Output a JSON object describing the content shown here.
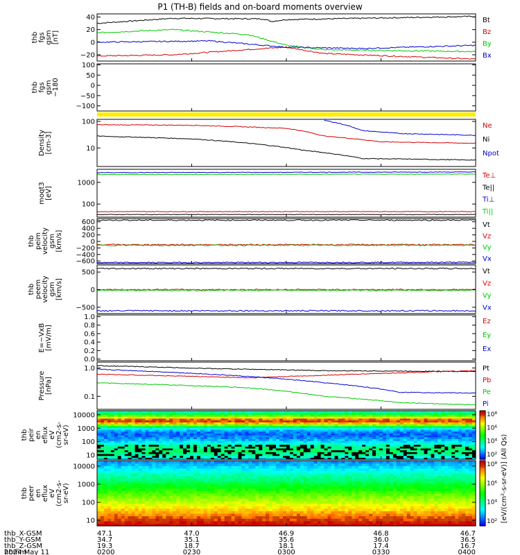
{
  "title": "P1  (TH-B) fields and on-board moments overview",
  "colors": {
    "black": "#000000",
    "red": "#d40000",
    "green": "#00c800",
    "blue": "#0000d0",
    "yellow": "#ffee00"
  },
  "chart_data": [
    {
      "type": "line",
      "id": "fgs",
      "ylabel_lines": [
        "thb",
        "fgs",
        "gsm",
        "[nT]"
      ],
      "yticks": [
        "40",
        "20",
        "0",
        "−20"
      ],
      "ytick_vals": [
        40,
        20,
        0,
        -20
      ],
      "ylim": [
        -30,
        45
      ],
      "series": [
        {
          "name": "Bt",
          "color": "black",
          "shape": [
            [
              0,
              30
            ],
            [
              0.2,
              38
            ],
            [
              0.44,
              37
            ],
            [
              0.46,
              33
            ],
            [
              0.5,
              36
            ],
            [
              1,
              41
            ]
          ]
        },
        {
          "name": "Bz",
          "color": "red",
          "shape": [
            [
              0,
              -22
            ],
            [
              0.2,
              -20
            ],
            [
              0.44,
              -10
            ],
            [
              0.5,
              -8
            ],
            [
              0.6,
              -18
            ],
            [
              1,
              -27
            ]
          ]
        },
        {
          "name": "By",
          "color": "green",
          "shape": [
            [
              0,
              15
            ],
            [
              0.2,
              20
            ],
            [
              0.4,
              12
            ],
            [
              0.5,
              -5
            ],
            [
              0.6,
              -12
            ],
            [
              1,
              -15
            ]
          ]
        },
        {
          "name": "Bx",
          "color": "blue",
          "shape": [
            [
              0,
              0
            ],
            [
              0.3,
              2
            ],
            [
              0.5,
              -8
            ],
            [
              0.7,
              -10
            ],
            [
              1,
              -5
            ]
          ]
        }
      ]
    },
    {
      "type": "line",
      "id": "fgs-dsl",
      "ylabel_lines": [
        "thb",
        "fgs",
        "gsm",
        "−180"
      ],
      "yticks": [
        "100",
        "50",
        "0",
        "−50",
        "−100"
      ],
      "ytick_vals": [
        100,
        50,
        0,
        -50,
        -100
      ],
      "ylim": [
        -125,
        105
      ],
      "series": []
    },
    {
      "type": "line",
      "id": "density",
      "ylabel_lines": [
        "Density",
        "[cm-3]"
      ],
      "yticks": [
        "100",
        "10"
      ],
      "ytick_vals": [
        100,
        10
      ],
      "ylim": [
        2,
        120
      ],
      "log": true,
      "series": [
        {
          "name": "Ne",
          "color": "red",
          "shape": [
            [
              0,
              75
            ],
            [
              0.25,
              72
            ],
            [
              0.5,
              55
            ],
            [
              0.6,
              28
            ],
            [
              0.75,
              17
            ],
            [
              1,
              15
            ]
          ]
        },
        {
          "name": "Ni",
          "color": "black",
          "shape": [
            [
              0,
              28
            ],
            [
              0.25,
              22
            ],
            [
              0.4,
              15
            ],
            [
              0.55,
              8
            ],
            [
              0.7,
              4
            ],
            [
              1,
              3.5
            ]
          ]
        },
        {
          "name": "Npot",
          "color": "blue",
          "shape": [
            [
              0.6,
              110
            ],
            [
              0.7,
              45
            ],
            [
              0.8,
              35
            ],
            [
              1,
              30
            ]
          ]
        }
      ]
    },
    {
      "type": "line",
      "id": "moms",
      "ylabel_lines": [
        "moqt3",
        "[eV]"
      ],
      "yticks": [
        "1000",
        "100"
      ],
      "ytick_vals": [
        1000,
        100
      ],
      "ylim": [
        25,
        4000
      ],
      "log": true,
      "series": [
        {
          "name": "Te⊥",
          "color": "red",
          "shape": [
            [
              0,
              45
            ],
            [
              1,
              45
            ]
          ]
        },
        {
          "name": "Te||",
          "color": "black",
          "shape": [
            [
              0,
              33
            ],
            [
              1,
              33
            ]
          ]
        },
        {
          "name": "Ti⊥",
          "color": "blue",
          "shape": [
            [
              0,
              2800
            ],
            [
              1,
              3000
            ]
          ]
        },
        {
          "name": "Ti||",
          "color": "green",
          "shape": [
            [
              0,
              2300
            ],
            [
              1,
              2400
            ]
          ]
        }
      ]
    },
    {
      "type": "line",
      "id": "peim",
      "ylabel_lines": [
        "thb",
        "peim",
        "velocity",
        "gsm",
        "[km/s]"
      ],
      "yticks": [
        "600",
        "400",
        "200",
        "0",
        "−200",
        "−400",
        "−600"
      ],
      "ytick_vals": [
        600,
        400,
        200,
        0,
        -200,
        -400,
        -600
      ],
      "ylim": [
        -680,
        700
      ],
      "series": [
        {
          "name": "Vt",
          "color": "black",
          "shape": [
            [
              0,
              650
            ],
            [
              1,
              650
            ]
          ]
        },
        {
          "name": "Vz",
          "color": "red",
          "shape": [
            [
              0,
              -100
            ],
            [
              1,
              -100
            ]
          ]
        },
        {
          "name": "Vy",
          "color": "green",
          "shape": [
            [
              0,
              -120
            ],
            [
              1,
              -120
            ]
          ]
        },
        {
          "name": "Vx",
          "color": "blue",
          "shape": [
            [
              0,
              -650
            ],
            [
              1,
              -640
            ]
          ]
        }
      ]
    },
    {
      "type": "line",
      "id": "peem",
      "ylabel_lines": [
        "thb",
        "peem",
        "velocity",
        "gsm",
        "[km/s]"
      ],
      "yticks": [
        "500",
        "0",
        "−500"
      ],
      "ytick_vals": [
        500,
        0,
        -500
      ],
      "ylim": [
        -680,
        700
      ],
      "series": [
        {
          "name": "Vt",
          "color": "black",
          "shape": [
            [
              0,
              600
            ],
            [
              1,
              600
            ]
          ]
        },
        {
          "name": "Vz",
          "color": "red",
          "shape": [
            [
              0,
              0
            ],
            [
              1,
              0
            ]
          ]
        },
        {
          "name": "Vy",
          "color": "green",
          "shape": [
            [
              0,
              -20
            ],
            [
              1,
              -20
            ]
          ]
        },
        {
          "name": "Vx",
          "color": "blue",
          "shape": [
            [
              0,
              -600
            ],
            [
              1,
              -600
            ]
          ]
        }
      ]
    },
    {
      "type": "line",
      "id": "efield",
      "ylabel_lines": [
        "E=−VxB",
        "[mV/m]"
      ],
      "yticks": [
        "1.0",
        "0.8",
        "0.6",
        "0.4",
        "0.2",
        "0.0"
      ],
      "ytick_vals": [
        1,
        0.8,
        0.6,
        0.4,
        0.2,
        0
      ],
      "ylim": [
        -0.04,
        1.04
      ],
      "series": [],
      "legend": [
        {
          "name": "Ez",
          "color": "red"
        },
        {
          "name": "Ey",
          "color": "green"
        },
        {
          "name": "Ex",
          "color": "blue"
        }
      ]
    },
    {
      "type": "line",
      "id": "pressure",
      "ylabel_lines": [
        "Pressure",
        "[nPa]"
      ],
      "yticks": [
        "1.0",
        "0.1"
      ],
      "ytick_vals": [
        1,
        0.1
      ],
      "ylim": [
        0.035,
        1.6
      ],
      "log": true,
      "series": [
        {
          "name": "Pt",
          "color": "black",
          "shape": [
            [
              0,
              1.2
            ],
            [
              0.3,
              0.95
            ],
            [
              0.6,
              0.8
            ],
            [
              1,
              0.75
            ]
          ]
        },
        {
          "name": "Pb",
          "color": "red",
          "shape": [
            [
              0,
              0.6
            ],
            [
              0.4,
              0.45
            ],
            [
              0.6,
              0.55
            ],
            [
              1,
              0.8
            ]
          ]
        },
        {
          "name": "Pe",
          "color": "green",
          "shape": [
            [
              0,
              0.3
            ],
            [
              0.4,
              0.2
            ],
            [
              0.6,
              0.1
            ],
            [
              0.8,
              0.06
            ],
            [
              1,
              0.05
            ]
          ]
        },
        {
          "name": "Pi",
          "color": "blue",
          "shape": [
            [
              0,
              0.9
            ],
            [
              0.4,
              0.5
            ],
            [
              0.6,
              0.3
            ],
            [
              0.8,
              0.14
            ],
            [
              1,
              0.13
            ]
          ]
        }
      ]
    },
    {
      "type": "heatmap",
      "id": "peir",
      "ylabel_lines": [
        "thb",
        "peir",
        "en",
        "eflux",
        "eV",
        "(cm2-s-",
        "sr-eV)"
      ],
      "yticks": [
        "10000",
        "1000",
        "100",
        "10"
      ],
      "ytick_vals": [
        10000,
        1000,
        100,
        10
      ],
      "ylim": [
        5,
        20000
      ],
      "log": true
    },
    {
      "type": "heatmap",
      "id": "peer",
      "ylabel_lines": [
        "thb",
        "peer",
        "en",
        "eflux",
        "eV",
        "(cm2-s-",
        "sr-eV)"
      ],
      "yticks": [
        "10000",
        "1000",
        "100",
        "10"
      ],
      "ytick_vals": [
        10000,
        1000,
        100,
        10
      ],
      "ylim": [
        5,
        20000
      ],
      "log": true
    }
  ],
  "x_axis": {
    "rows": [
      {
        "label": "thb_X-GSM",
        "values": [
          "47.1",
          "47.0",
          "46.9",
          "46.8",
          "46.7"
        ]
      },
      {
        "label": "thb_Y-GSM",
        "values": [
          "34.7",
          "35.1",
          "35.6",
          "36.0",
          "36.5"
        ]
      },
      {
        "label": "thb_Z-GSM",
        "values": [
          "19.3",
          "18.7",
          "18.1",
          "17.4",
          "16.7"
        ]
      },
      {
        "label": "hhmm",
        "values": [
          "0200",
          "0230",
          "0300",
          "0330",
          "0400"
        ]
      }
    ],
    "date": "2024 May 11"
  },
  "colorbar": {
    "ticks": [
      "10⁸",
      "10⁶",
      "10⁴",
      "10²"
    ],
    "ticks_lower": [
      "10⁸",
      "10⁶",
      "10⁴",
      "10²"
    ],
    "label": "[eV/(cm²-s-sr-eV)] (All Qs)"
  }
}
